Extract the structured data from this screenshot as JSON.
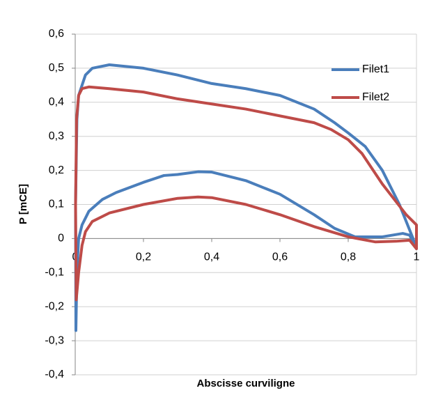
{
  "chart_data": {
    "type": "line",
    "x_label": "Abscisse curviligne",
    "y_label": "P [mCE]",
    "xlim": [
      0,
      1
    ],
    "ylim": [
      -0.4,
      0.6
    ],
    "xticks": [
      0,
      {
        "value": 0.2,
        "label": "0,2"
      },
      {
        "value": 0.4,
        "label": "0,4"
      },
      {
        "value": 0.6,
        "label": "0,6"
      },
      {
        "value": 0.8,
        "label": "0,8"
      },
      1
    ],
    "yticks": [
      {
        "value": -0.4,
        "label": "-0,4"
      },
      {
        "value": -0.3,
        "label": "-0,3"
      },
      {
        "value": -0.2,
        "label": "-0,2"
      },
      {
        "value": -0.1,
        "label": "-0,1"
      },
      0,
      {
        "value": 0.1,
        "label": "0,1"
      },
      {
        "value": 0.2,
        "label": "0,2"
      },
      {
        "value": 0.3,
        "label": "0,3"
      },
      {
        "value": 0.4,
        "label": "0,4"
      },
      {
        "value": 0.5,
        "label": "0,5"
      },
      {
        "value": 0.6,
        "label": "0,6"
      }
    ],
    "grid": true,
    "legend": "upper right",
    "series": [
      {
        "name": "Filet1",
        "color": "#4a7ebb",
        "x": [
          0.002,
          0.005,
          0.01,
          0.02,
          0.04,
          0.08,
          0.12,
          0.2,
          0.26,
          0.3,
          0.36,
          0.4,
          0.5,
          0.6,
          0.7,
          0.76,
          0.82,
          0.9,
          0.96,
          0.98,
          1,
          0.99,
          0.95,
          0.9,
          0.85,
          0.8,
          0.76,
          0.7,
          0.6,
          0.5,
          0.4,
          0.3,
          0.2,
          0.1,
          0.05,
          0.03,
          0.01,
          0.005,
          0.001,
          0.002
        ],
        "values": [
          -0.27,
          -0.1,
          0,
          0.04,
          0.08,
          0.115,
          0.135,
          0.165,
          0.185,
          0.188,
          0.196,
          0.195,
          0.17,
          0.13,
          0.07,
          0.03,
          0.005,
          0.005,
          0.015,
          0.01,
          -0.03,
          0.0,
          0.1,
          0.2,
          0.27,
          0.31,
          0.34,
          0.38,
          0.42,
          0.44,
          0.455,
          0.48,
          0.5,
          0.51,
          0.5,
          0.48,
          0.42,
          0.35,
          0.1,
          -0.27
        ]
      },
      {
        "name": "Filet2",
        "color": "#be4b48",
        "x": [
          0.003,
          0.01,
          0.02,
          0.03,
          0.05,
          0.1,
          0.2,
          0.3,
          0.36,
          0.4,
          0.5,
          0.6,
          0.7,
          0.8,
          0.88,
          0.94,
          0.98,
          1,
          1,
          0.97,
          0.9,
          0.84,
          0.8,
          0.75,
          0.7,
          0.6,
          0.5,
          0.4,
          0.3,
          0.2,
          0.1,
          0.04,
          0.02,
          0.01,
          0.004,
          0.001,
          0.003
        ],
        "values": [
          -0.18,
          -0.1,
          -0.02,
          0.02,
          0.05,
          0.075,
          0.1,
          0.118,
          0.122,
          0.12,
          0.1,
          0.07,
          0.035,
          0.005,
          -0.01,
          -0.008,
          -0.005,
          -0.03,
          0.04,
          0.07,
          0.16,
          0.25,
          0.29,
          0.32,
          0.34,
          0.36,
          0.38,
          0.395,
          0.41,
          0.43,
          0.44,
          0.445,
          0.44,
          0.42,
          0.35,
          0.1,
          -0.18
        ]
      }
    ]
  }
}
